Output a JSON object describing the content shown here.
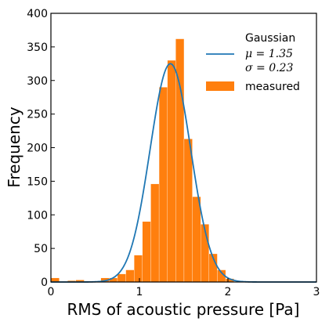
{
  "chart_data": {
    "type": "bar",
    "xlabel": "RMS of acoustic pressure [Pa]",
    "ylabel": "Frequency",
    "xlim": [
      0,
      3
    ],
    "ylim": [
      0,
      400
    ],
    "xticks": [
      0,
      1,
      2,
      3
    ],
    "xtick_labels": [
      "0",
      "1",
      "2",
      "3"
    ],
    "yticks": [
      0,
      50,
      100,
      150,
      200,
      250,
      300,
      350,
      400
    ],
    "ytick_labels": [
      "0",
      "50",
      "100",
      "150",
      "200",
      "250",
      "300",
      "350",
      "400"
    ],
    "grid": false,
    "legend_placement": "top-right",
    "histogram": {
      "name": "measured",
      "color": "#ff7f0e",
      "bin_width": 0.094,
      "bins": [
        {
          "x0": 0.0,
          "count": 6
        },
        {
          "x0": 0.188,
          "count": 2
        },
        {
          "x0": 0.282,
          "count": 3
        },
        {
          "x0": 0.564,
          "count": 6
        },
        {
          "x0": 0.658,
          "count": 6
        },
        {
          "x0": 0.752,
          "count": 12
        },
        {
          "x0": 0.846,
          "count": 18
        },
        {
          "x0": 0.94,
          "count": 40
        },
        {
          "x0": 1.034,
          "count": 90
        },
        {
          "x0": 1.128,
          "count": 146
        },
        {
          "x0": 1.222,
          "count": 290
        },
        {
          "x0": 1.316,
          "count": 330
        },
        {
          "x0": 1.41,
          "count": 362
        },
        {
          "x0": 1.504,
          "count": 213
        },
        {
          "x0": 1.598,
          "count": 127
        },
        {
          "x0": 1.692,
          "count": 86
        },
        {
          "x0": 1.786,
          "count": 42
        },
        {
          "x0": 1.88,
          "count": 18
        },
        {
          "x0": 1.974,
          "count": 5
        }
      ]
    },
    "fit": {
      "name": "Gaussian",
      "color": "#1f77b4",
      "mu": 1.35,
      "sigma": 0.23,
      "peak": 325
    },
    "legend": {
      "fit_title": "Gaussian",
      "mu_text": "μ = 1.35",
      "sigma_text": "σ = 0.23",
      "hist_label": "measured"
    }
  }
}
